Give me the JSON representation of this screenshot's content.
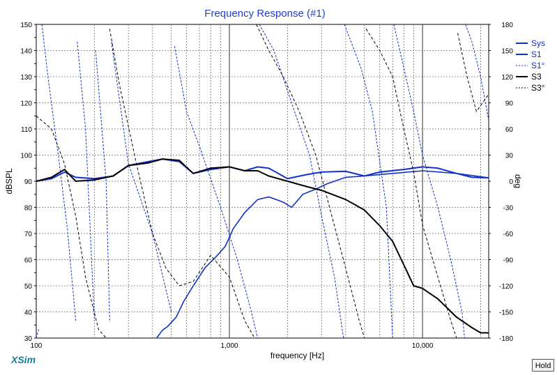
{
  "app": {
    "logo_text": "XSim",
    "hold_button": "Hold"
  },
  "colors": {
    "blue": "#1030c8",
    "black": "#000000",
    "title": "#1f3fd2",
    "grid": "#606060"
  },
  "chart_data": {
    "type": "line",
    "title": "Frequency Response (#1)",
    "xlabel": "frequency [Hz]",
    "ylabel": "dBSPL",
    "y2label": "deg",
    "xscale": "log",
    "xlim": [
      100,
      22000
    ],
    "ylim": [
      30,
      150
    ],
    "y2lim": [
      -180,
      180
    ],
    "grid": true,
    "legend_position": "right",
    "x_ticks": [
      100,
      1000,
      10000
    ],
    "x_tick_labels": [
      "100",
      "1,000",
      "10,000"
    ],
    "y_ticks": [
      30,
      35,
      40,
      45,
      50,
      55,
      60,
      65,
      70,
      75,
      80,
      85,
      90,
      95,
      100,
      105,
      110,
      115,
      120,
      125,
      130,
      135,
      140,
      145,
      150
    ],
    "y_tick_labels": [
      "30",
      "",
      "40",
      "",
      "50",
      "",
      "60",
      "",
      "70",
      "",
      "80",
      "",
      "90",
      "",
      "100",
      "",
      "110",
      "",
      "120",
      "",
      "130",
      "",
      "140",
      "",
      "150"
    ],
    "y2_ticks": [
      -180,
      -150,
      -120,
      -90,
      -60,
      -30,
      0,
      30,
      60,
      90,
      120,
      150,
      180
    ],
    "y2_tick_labels": [
      "-180",
      "-150",
      "-120",
      "-90",
      "-60",
      "-30",
      "0",
      "30",
      "60",
      "90",
      "120",
      "150",
      "180"
    ],
    "series": [
      {
        "name": "Sys",
        "axis": "left",
        "color": "#1030c8",
        "dash": "solid",
        "width": 2,
        "points": [
          [
            100,
            90
          ],
          [
            120,
            91
          ],
          [
            140,
            93.5
          ],
          [
            160,
            91.5
          ],
          [
            200,
            91
          ],
          [
            250,
            92
          ],
          [
            300,
            96
          ],
          [
            380,
            97.5
          ],
          [
            450,
            98.5
          ],
          [
            550,
            97.5
          ],
          [
            650,
            93
          ],
          [
            800,
            94.5
          ],
          [
            1000,
            95.5
          ],
          [
            1200,
            94
          ],
          [
            1400,
            95.5
          ],
          [
            1600,
            95
          ],
          [
            2000,
            91
          ],
          [
            2500,
            92.5
          ],
          [
            3000,
            93.5
          ],
          [
            4000,
            93.8
          ],
          [
            5000,
            92
          ],
          [
            6000,
            93.5
          ],
          [
            8000,
            94.5
          ],
          [
            10000,
            95.5
          ],
          [
            12000,
            95
          ],
          [
            15000,
            93
          ],
          [
            18000,
            91.5
          ],
          [
            22000,
            91.3
          ]
        ]
      },
      {
        "name": "S1",
        "axis": "left",
        "color": "#1030c8",
        "dash": "solid",
        "width": 1.6,
        "points": [
          [
            420,
            30
          ],
          [
            450,
            33
          ],
          [
            480,
            34.5
          ],
          [
            530,
            38
          ],
          [
            580,
            44
          ],
          [
            650,
            50
          ],
          [
            750,
            57
          ],
          [
            850,
            61
          ],
          [
            950,
            65
          ],
          [
            1050,
            72
          ],
          [
            1200,
            78
          ],
          [
            1400,
            83
          ],
          [
            1600,
            84
          ],
          [
            1900,
            82
          ],
          [
            2100,
            80
          ],
          [
            2400,
            85
          ],
          [
            2800,
            87
          ],
          [
            3200,
            89
          ],
          [
            4000,
            91.5
          ],
          [
            5000,
            92
          ],
          [
            7000,
            93
          ],
          [
            10000,
            94
          ],
          [
            15000,
            93
          ],
          [
            22000,
            91.3
          ]
        ]
      },
      {
        "name": "S1°",
        "axis": "right",
        "color": "#1030c8",
        "dash": "3,2",
        "width": 1,
        "points": [
          [
            100,
            -180
          ],
          [
            103,
            -170
          ],
          [
            107,
            180
          ],
          [
            115,
            120
          ],
          [
            130,
            30
          ],
          [
            145,
            -55
          ],
          [
            160,
            -160
          ],
          [
            163,
            160
          ],
          [
            180,
            60
          ],
          [
            200,
            -160
          ],
          [
            203,
            150
          ],
          [
            230,
            0
          ],
          [
            240,
            -160
          ],
          [
            245,
            160
          ],
          [
            300,
            20
          ],
          [
            400,
            -60
          ],
          [
            500,
            -150
          ],
          [
            520,
            155
          ],
          [
            600,
            80
          ],
          [
            700,
            40
          ],
          [
            900,
            -30
          ],
          [
            1100,
            -90
          ],
          [
            1300,
            -150
          ],
          [
            1400,
            -180
          ],
          [
            1430,
            180
          ],
          [
            1700,
            150
          ],
          [
            2100,
            90
          ],
          [
            2600,
            30
          ],
          [
            3000,
            -40
          ],
          [
            3500,
            -110
          ],
          [
            3900,
            -180
          ],
          [
            3940,
            180
          ],
          [
            4800,
            130
          ],
          [
            5500,
            80
          ],
          [
            6500,
            -30
          ],
          [
            7000,
            -180
          ],
          [
            7100,
            180
          ],
          [
            8000,
            130
          ],
          [
            9000,
            80
          ],
          [
            10000,
            30
          ],
          [
            12000,
            -30
          ],
          [
            14000,
            -90
          ],
          [
            16000,
            -150
          ],
          [
            16500,
            -180
          ],
          [
            16700,
            180
          ],
          [
            18000,
            160
          ],
          [
            20000,
            120
          ],
          [
            22000,
            70
          ]
        ]
      },
      {
        "name": "S3",
        "axis": "left",
        "color": "#000000",
        "dash": "solid",
        "width": 2,
        "points": [
          [
            100,
            90
          ],
          [
            120,
            91.5
          ],
          [
            140,
            94.5
          ],
          [
            160,
            90
          ],
          [
            200,
            90.5
          ],
          [
            250,
            92
          ],
          [
            300,
            96
          ],
          [
            380,
            97
          ],
          [
            450,
            98.5
          ],
          [
            550,
            98
          ],
          [
            650,
            93
          ],
          [
            800,
            95
          ],
          [
            1000,
            95.5
          ],
          [
            1200,
            94
          ],
          [
            1400,
            94
          ],
          [
            1600,
            92
          ],
          [
            2000,
            90
          ],
          [
            2500,
            88
          ],
          [
            3000,
            86.5
          ],
          [
            4000,
            83
          ],
          [
            5000,
            79
          ],
          [
            6000,
            73
          ],
          [
            7000,
            67
          ],
          [
            8000,
            58
          ],
          [
            9000,
            50
          ],
          [
            10000,
            49
          ],
          [
            12000,
            45
          ],
          [
            15000,
            38
          ],
          [
            18000,
            34
          ],
          [
            20000,
            32
          ],
          [
            22000,
            32
          ]
        ]
      },
      {
        "name": "S3°",
        "axis": "right",
        "color": "#000000",
        "dash": "4,3",
        "width": 1,
        "points": [
          [
            100,
            75
          ],
          [
            120,
            60
          ],
          [
            140,
            20
          ],
          [
            160,
            -40
          ],
          [
            180,
            -110
          ],
          [
            210,
            -170
          ],
          [
            230,
            -180
          ],
          [
            240,
            175
          ],
          [
            270,
            110
          ],
          [
            330,
            20
          ],
          [
            400,
            -60
          ],
          [
            470,
            -100
          ],
          [
            550,
            -120
          ],
          [
            650,
            -115
          ],
          [
            800,
            -85
          ],
          [
            1000,
            -110
          ],
          [
            1200,
            -160
          ],
          [
            1350,
            -180
          ],
          [
            1380,
            180
          ],
          [
            1600,
            150
          ],
          [
            1900,
            120
          ],
          [
            2300,
            80
          ],
          [
            2800,
            30
          ],
          [
            3300,
            -30
          ],
          [
            4000,
            -100
          ],
          [
            4700,
            -160
          ],
          [
            5000,
            -180
          ],
          [
            5100,
            175
          ],
          [
            6000,
            150
          ],
          [
            7000,
            120
          ],
          [
            8000,
            60
          ],
          [
            9000,
            10
          ],
          [
            10000,
            -50
          ],
          [
            12000,
            -110
          ],
          [
            14000,
            -160
          ],
          [
            15000,
            -180
          ],
          [
            15200,
            170
          ],
          [
            17000,
            120
          ],
          [
            19000,
            80
          ],
          [
            22000,
            100
          ]
        ]
      }
    ]
  }
}
